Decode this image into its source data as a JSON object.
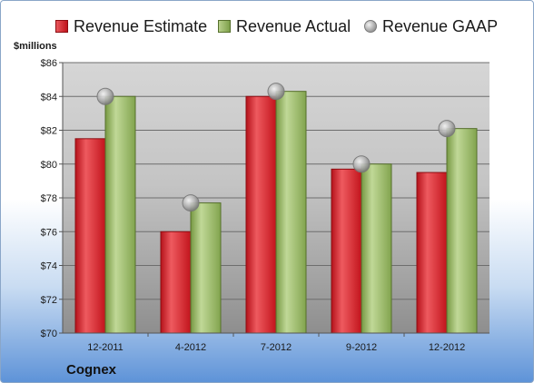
{
  "chart_data": {
    "type": "bar",
    "categories": [
      "12-2011",
      "4-2012",
      "7-2012",
      "9-2012",
      "12-2012"
    ],
    "series": [
      {
        "name": "Revenue Estimate",
        "kind": "bar",
        "color": "#c8171f",
        "values": [
          81.5,
          76.0,
          84.0,
          79.7,
          79.5
        ]
      },
      {
        "name": "Revenue Actual",
        "kind": "bar",
        "color": "#8aab55",
        "values": [
          84.0,
          77.7,
          84.3,
          80.0,
          82.1
        ]
      },
      {
        "name": "Revenue GAAP",
        "kind": "marker",
        "color": "#a6a6a6",
        "values": [
          84.0,
          77.7,
          84.3,
          80.0,
          82.1
        ]
      }
    ],
    "ylabel": "$millions",
    "ylim": [
      70,
      86
    ],
    "yticks": [
      "$70",
      "$72",
      "$74",
      "$76",
      "$78",
      "$80",
      "$82",
      "$84",
      "$86"
    ],
    "ytick_values": [
      70,
      72,
      74,
      76,
      78,
      80,
      82,
      84,
      86
    ],
    "grid": true,
    "legend_position": "top"
  },
  "legend": {
    "estimate": "Revenue Estimate",
    "actual": "Revenue Actual",
    "gaap": "Revenue GAAP"
  },
  "unit_label": "$millions",
  "company": "Cognex"
}
